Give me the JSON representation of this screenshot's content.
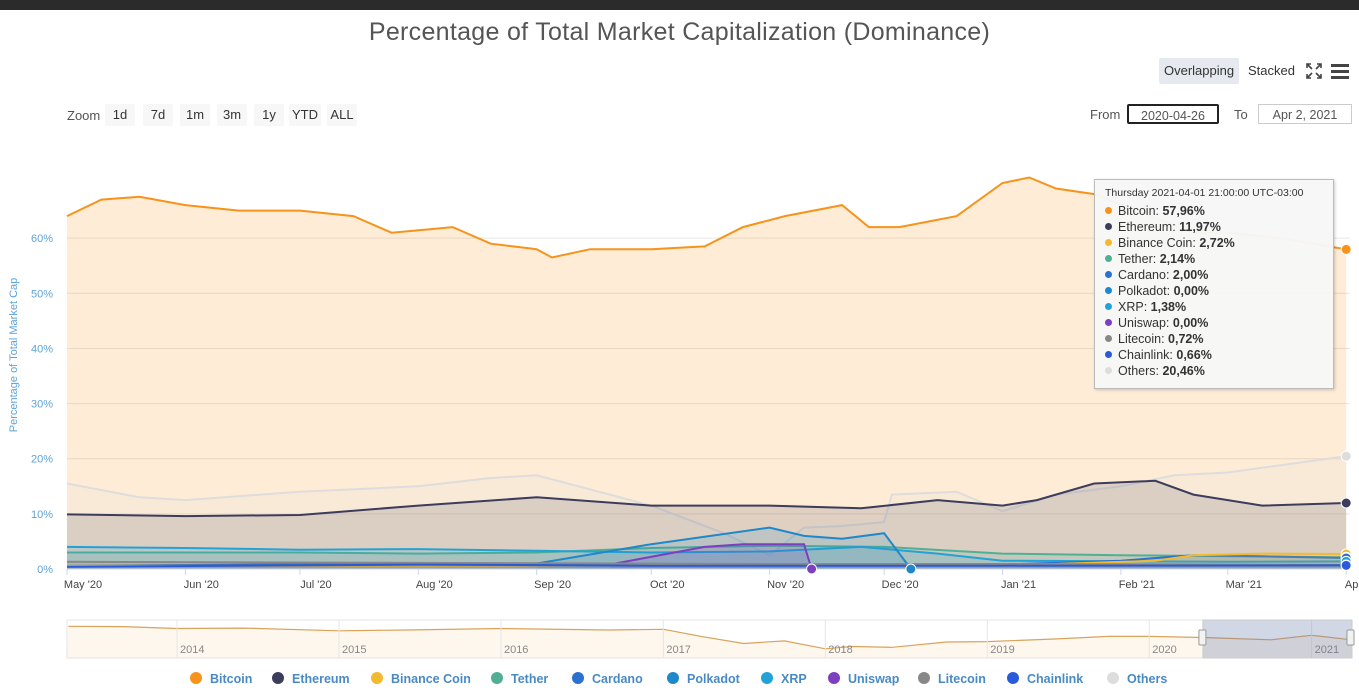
{
  "chart_title": "Percentage of Total Market Capitalization (Dominance)",
  "controls": {
    "modes": [
      "Overlapping",
      "Stacked"
    ],
    "active_mode": "Overlapping",
    "fullscreen_icon": "fullscreen-icon",
    "menu_icon": "hamburger-menu-icon",
    "zoom_label": "Zoom",
    "zoom_buttons": [
      "1d",
      "7d",
      "1m",
      "3m",
      "1y",
      "YTD",
      "ALL"
    ],
    "from_label": "From",
    "from_value": "2020-04-26",
    "to_label": "To",
    "to_value": "Apr 2, 2021"
  },
  "tooltip": {
    "header": "Thursday 2021-04-01 21:00:00 UTC-03:00",
    "rows": [
      {
        "name": "Bitcoin",
        "value": "57,96%",
        "color": "#f7931a"
      },
      {
        "name": "Ethereum",
        "value": "11,97%",
        "color": "#3c3c5d"
      },
      {
        "name": "Binance Coin",
        "value": "2,72%",
        "color": "#f3ba2f"
      },
      {
        "name": "Tether",
        "value": "2,14%",
        "color": "#50af95"
      },
      {
        "name": "Cardano",
        "value": "2,00%",
        "color": "#2a71d0"
      },
      {
        "name": "Polkadot",
        "value": "0,00%",
        "color": "#1e88c8"
      },
      {
        "name": "XRP",
        "value": "1,38%",
        "color": "#23a2d6"
      },
      {
        "name": "Uniswap",
        "value": "0,00%",
        "color": "#7e3fbf"
      },
      {
        "name": "Litecoin",
        "value": "0,72%",
        "color": "#888888"
      },
      {
        "name": "Chainlink",
        "value": "0,66%",
        "color": "#2a5ada"
      },
      {
        "name": "Others",
        "value": "20,46%",
        "color": "#dddddd"
      }
    ]
  },
  "chart_data": {
    "type": "area",
    "title": "Percentage of Total Market Capitalization (Dominance)",
    "ylabel": "Percentage of Total Market Cap",
    "ylim": [
      0,
      72
    ],
    "y_ticks": [
      "0%",
      "10%",
      "20%",
      "30%",
      "40%",
      "50%",
      "60%"
    ],
    "x_range": [
      "2020-05-01",
      "2021-04-02"
    ],
    "x_ticks": [
      "May '20",
      "Jun '20",
      "Jul '20",
      "Aug '20",
      "Sep '20",
      "Oct '20",
      "Nov '20",
      "Dec '20",
      "Jan '21",
      "Feb '21",
      "Mar '21",
      "Apr '21"
    ],
    "series": [
      {
        "name": "Bitcoin",
        "color": "#f7931a",
        "x": [
          "2020-05-01",
          "2020-05-10",
          "2020-05-20",
          "2020-06-01",
          "2020-06-15",
          "2020-07-01",
          "2020-07-15",
          "2020-07-25",
          "2020-08-10",
          "2020-08-20",
          "2020-09-01",
          "2020-09-05",
          "2020-09-15",
          "2020-10-01",
          "2020-10-15",
          "2020-10-25",
          "2020-11-05",
          "2020-11-20",
          "2020-11-27",
          "2020-12-05",
          "2020-12-20",
          "2021-01-01",
          "2021-01-08",
          "2021-01-15",
          "2021-01-25",
          "2021-02-05",
          "2021-02-20",
          "2021-03-01",
          "2021-03-15",
          "2021-04-01"
        ],
        "y": [
          64,
          67,
          67.5,
          66,
          65,
          65,
          64,
          61,
          62,
          59,
          58,
          56.5,
          58,
          58,
          58.5,
          62,
          64,
          66,
          62,
          62,
          64,
          70,
          71,
          69,
          68,
          65,
          61,
          61,
          60,
          57.96
        ]
      },
      {
        "name": "Ethereum",
        "color": "#3c3c5d",
        "x": [
          "2020-05-01",
          "2020-06-01",
          "2020-07-01",
          "2020-08-01",
          "2020-09-01",
          "2020-10-01",
          "2020-11-01",
          "2020-11-25",
          "2020-12-15",
          "2021-01-01",
          "2021-01-10",
          "2021-01-25",
          "2021-02-10",
          "2021-02-20",
          "2021-03-10",
          "2021-04-01"
        ],
        "y": [
          9.9,
          9.6,
          9.8,
          11.5,
          13.0,
          11.5,
          11.5,
          11.0,
          12.5,
          11.5,
          12.5,
          15.5,
          16.0,
          13.5,
          11.5,
          11.97
        ]
      },
      {
        "name": "Binance Coin",
        "color": "#f3ba2f",
        "x": [
          "2020-05-01",
          "2020-08-01",
          "2020-11-01",
          "2021-01-01",
          "2021-02-10",
          "2021-02-20",
          "2021-03-10",
          "2021-04-01"
        ],
        "y": [
          0.6,
          0.5,
          0.8,
          0.6,
          1.5,
          2.5,
          2.8,
          2.72
        ]
      },
      {
        "name": "Tether",
        "color": "#50af95",
        "x": [
          "2020-05-01",
          "2020-06-01",
          "2020-07-01",
          "2020-08-01",
          "2020-09-01",
          "2020-10-01",
          "2020-11-01",
          "2020-12-01",
          "2021-01-01",
          "2021-02-01",
          "2021-03-01",
          "2021-04-01"
        ],
        "y": [
          3.0,
          3.0,
          3.0,
          2.8,
          3.0,
          3.8,
          4.2,
          4.0,
          2.8,
          2.5,
          2.3,
          2.14
        ]
      },
      {
        "name": "Cardano",
        "color": "#2a71d0",
        "x": [
          "2020-05-01",
          "2020-08-01",
          "2020-11-01",
          "2021-01-01",
          "2021-02-01",
          "2021-02-20",
          "2021-03-10",
          "2021-04-01"
        ],
        "y": [
          0.6,
          1.0,
          0.8,
          0.8,
          1.5,
          2.5,
          2.3,
          2.0
        ]
      },
      {
        "name": "Polkadot",
        "color": "#1e88c8",
        "x": [
          "2020-09-01",
          "2020-10-01",
          "2020-11-01",
          "2020-11-10",
          "2020-11-20",
          "2020-12-01",
          "2020-12-08"
        ],
        "y": [
          1.0,
          4.5,
          7.5,
          6.0,
          5.5,
          6.5,
          0.0
        ]
      },
      {
        "name": "XRP",
        "color": "#23a2d6",
        "x": [
          "2020-05-01",
          "2020-06-01",
          "2020-07-01",
          "2020-08-01",
          "2020-09-01",
          "2020-10-01",
          "2020-11-01",
          "2020-11-25",
          "2020-12-15",
          "2021-01-01",
          "2021-02-01",
          "2021-03-01",
          "2021-04-01"
        ],
        "y": [
          4.0,
          3.8,
          3.5,
          3.6,
          3.3,
          3.0,
          3.2,
          4.0,
          2.8,
          1.5,
          1.4,
          1.3,
          1.38
        ]
      },
      {
        "name": "Uniswap",
        "color": "#7e3fbf",
        "x": [
          "2020-09-20",
          "2020-10-15",
          "2020-10-25",
          "2020-11-10",
          "2020-11-12"
        ],
        "y": [
          0.8,
          4.0,
          4.5,
          4.5,
          0.0
        ]
      },
      {
        "name": "Litecoin",
        "color": "#888888",
        "x": [
          "2020-05-01",
          "2020-08-01",
          "2020-11-01",
          "2021-01-01",
          "2021-04-01"
        ],
        "y": [
          1.3,
          1.1,
          0.9,
          0.9,
          0.72
        ]
      },
      {
        "name": "Chainlink",
        "color": "#2a5ada",
        "x": [
          "2020-05-01",
          "2020-08-01",
          "2020-10-01",
          "2021-01-01",
          "2021-04-01"
        ],
        "y": [
          0.4,
          0.8,
          0.6,
          0.6,
          0.66
        ]
      },
      {
        "name": "Others",
        "color": "#dddddd",
        "x": [
          "2020-05-01",
          "2020-05-20",
          "2020-06-01",
          "2020-07-01",
          "2020-08-01",
          "2020-08-20",
          "2020-09-01",
          "2020-10-01",
          "2020-10-20",
          "2020-11-01",
          "2020-11-10",
          "2020-11-20",
          "2020-12-01",
          "2020-12-03",
          "2020-12-20",
          "2021-01-01",
          "2021-01-15",
          "2021-02-01",
          "2021-02-15",
          "2021-03-01",
          "2021-04-01"
        ],
        "y": [
          15.5,
          13.0,
          12.5,
          14.0,
          15.0,
          16.5,
          17.0,
          11.5,
          6.5,
          2.5,
          7.5,
          7.8,
          8.5,
          13.5,
          14.0,
          10.5,
          13.5,
          15.0,
          17.0,
          17.5,
          20.46
        ]
      }
    ],
    "navigator": {
      "x_ticks": [
        "2014",
        "2015",
        "2016",
        "2017",
        "2018",
        "2019",
        "2020",
        "2021"
      ],
      "series": {
        "name": "Bitcoin",
        "x": [
          "2013-05-01",
          "2013-09-01",
          "2014-01-01",
          "2014-06-01",
          "2015-01-01",
          "2015-06-01",
          "2016-01-01",
          "2016-09-01",
          "2017-01-01",
          "2017-04-01",
          "2017-07-01",
          "2017-10-01",
          "2018-01-01",
          "2018-03-01",
          "2018-06-01",
          "2018-10-01",
          "2019-01-01",
          "2019-06-01",
          "2019-10-01",
          "2020-01-01",
          "2020-05-01",
          "2020-10-01",
          "2021-01-01",
          "2021-04-01"
        ],
        "y": [
          94,
          93,
          88,
          89,
          82,
          84,
          88,
          84,
          86,
          66,
          48,
          55,
          34,
          40,
          38,
          52,
          53,
          60,
          67,
          67,
          64,
          58,
          70,
          58
        ]
      }
    }
  },
  "legend": [
    {
      "name": "Bitcoin",
      "color": "#f7931a"
    },
    {
      "name": "Ethereum",
      "color": "#3c3c5d"
    },
    {
      "name": "Binance Coin",
      "color": "#f3ba2f"
    },
    {
      "name": "Tether",
      "color": "#50af95"
    },
    {
      "name": "Cardano",
      "color": "#2a71d0"
    },
    {
      "name": "Polkadot",
      "color": "#1e88c8"
    },
    {
      "name": "XRP",
      "color": "#23a2d6"
    },
    {
      "name": "Uniswap",
      "color": "#7e3fbf"
    },
    {
      "name": "Litecoin",
      "color": "#888888"
    },
    {
      "name": "Chainlink",
      "color": "#2a5ada"
    },
    {
      "name": "Others",
      "color": "#dddddd"
    }
  ]
}
